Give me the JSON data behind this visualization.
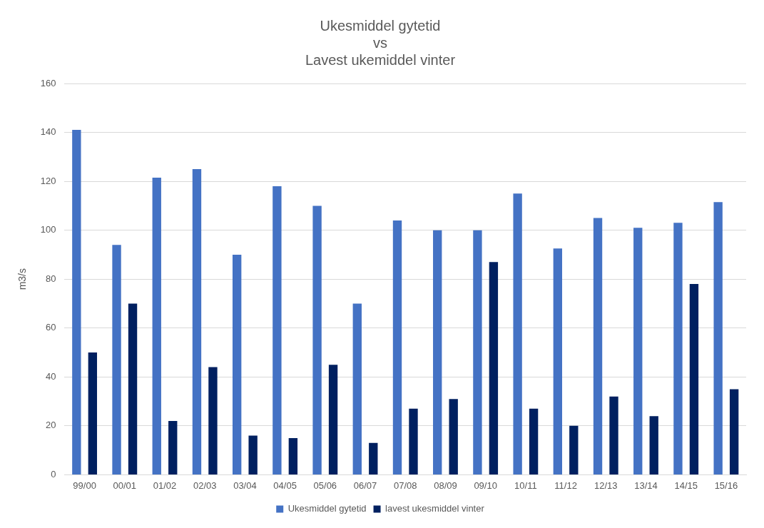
{
  "chart_data": {
    "type": "bar",
    "title": "Ukesmiddel gytetid\nvs\nLavest ukemiddel vinter",
    "ylabel": "m3/s",
    "categories": [
      "99/00",
      "00/01",
      "01/02",
      "02/03",
      "03/04",
      "04/05",
      "05/06",
      "06/07",
      "07/08",
      "08/09",
      "09/10",
      "10/11",
      "11/12",
      "12/13",
      "13/14",
      "14/15",
      "15/16"
    ],
    "series": [
      {
        "name": "Ukesmiddel gytetid",
        "color": "#4472c4",
        "values": [
          141,
          94,
          121.5,
          125,
          90,
          118,
          110,
          70,
          104,
          100,
          100,
          115,
          92.5,
          105,
          101,
          103,
          111.5
        ]
      },
      {
        "name": "lavest ukesmiddel vinter",
        "color": "#002060",
        "values": [
          50,
          70,
          22,
          44,
          16,
          15,
          45,
          13,
          27,
          31,
          87,
          27,
          20,
          32,
          24,
          78,
          35
        ]
      }
    ],
    "ylim": [
      0,
      160
    ],
    "yticks": [
      0,
      20,
      40,
      60,
      80,
      100,
      120,
      140,
      160
    ],
    "grid": "y",
    "legend": "bottom"
  }
}
